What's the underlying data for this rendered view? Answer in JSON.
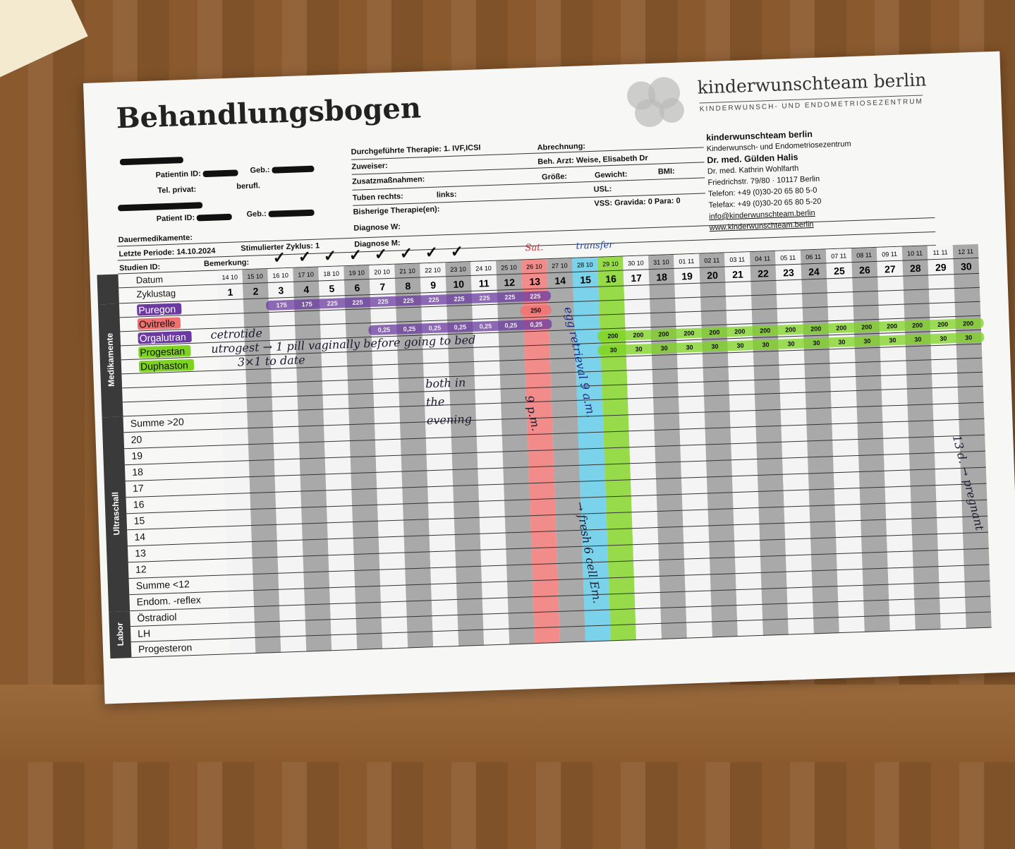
{
  "header": {
    "title": "Behandlungsbogen",
    "brand": "kinderwunschteam berlin",
    "brand_sub": "KINDERWUNSCH- UND ENDOMETRIOSEZENTRUM"
  },
  "patient": {
    "patientin_id": "Patientin ID:",
    "geb": "Geb.:",
    "tel_privat": "Tel. privat:",
    "berufl": "berufl.",
    "patient_id": "Patient ID:",
    "geb2": "Geb.:",
    "dauermedikamente": "Dauermedikamente:",
    "letzte_periode": "Letzte Periode: 14.10.2024",
    "stim_zyklus": "Stimulierter Zyklus: 1",
    "studien_id": "Studien ID:",
    "bemerkung": "Bemerkung:"
  },
  "therapy": {
    "durchgefuehrt": "Durchgeführte Therapie: 1. IVF,ICSI",
    "zuweiser": "Zuweiser:",
    "zusatz": "Zusatzmaßnahmen:",
    "tuben": "Tuben  rechts:",
    "links": "links:",
    "bisherige": "Bisherige Therapie(en):",
    "diagnose_w": "Diagnose W:",
    "diagnose_m": "Diagnose M:",
    "abrechnung": "Abrechnung:",
    "arzt": "Beh. Arzt: Weise, Elisabeth Dr",
    "groesse": "Größe:",
    "gewicht": "Gewicht:",
    "bmi": "BMI:",
    "usl": "USL:",
    "vss": "VSS:  Gravida: 0  Para: 0"
  },
  "clinic": {
    "name": "kinderwunschteam berlin",
    "sub": "Kinderwunsch- und Endometriosezentrum",
    "doc1": "Dr. med. Gülden Halis",
    "doc2": "Dr. med. Kathrin Wohlfarth",
    "address": "Friedrichstr. 79/80  ·  10117 Berlin",
    "phone": "Telefon: +49 (0)30-20 65 80 5-0",
    "fax": "Telefax: +49 (0)30-20 65 80 5-20",
    "email": "info@kinderwunschteam.berlin",
    "web": "www.kinderwunschteam.berlin"
  },
  "grid": {
    "row_date": "Datum",
    "row_day": "Zyklustag",
    "dates": [
      "14 10",
      "15 10",
      "16 10",
      "17 10",
      "18 10",
      "19 10",
      "20 10",
      "21 10",
      "22 10",
      "23 10",
      "24 10",
      "25 10",
      "26 10",
      "27 10",
      "28 10",
      "29 10",
      "30 10",
      "31 10",
      "01 11",
      "02 11",
      "03 11",
      "04 11",
      "05 11",
      "06 11",
      "07 11",
      "08 11",
      "09 11",
      "10 11",
      "11 11",
      "12 11"
    ],
    "days": [
      1,
      2,
      3,
      4,
      5,
      6,
      7,
      8,
      9,
      10,
      11,
      12,
      13,
      14,
      15,
      16,
      17,
      18,
      19,
      20,
      21,
      22,
      23,
      24,
      25,
      26,
      27,
      28,
      29,
      30
    ],
    "section_med": "Medikamente",
    "section_us": "Ultraschall",
    "section_lab": "Labor",
    "medications": [
      {
        "name": "Puregon",
        "color": "#6a3aa0",
        "values": [
          null,
          null,
          "175",
          "175",
          "225",
          "225",
          "225",
          "225",
          "225",
          "225",
          "225",
          "225",
          "225",
          null,
          null,
          null,
          null,
          null,
          null,
          null,
          null,
          null,
          null,
          null,
          null,
          null,
          null,
          null,
          null,
          null
        ]
      },
      {
        "name": "Ovitrelle",
        "color": "#f07070",
        "values": [
          null,
          null,
          null,
          null,
          null,
          null,
          null,
          null,
          null,
          null,
          null,
          null,
          "250",
          null,
          null,
          null,
          null,
          null,
          null,
          null,
          null,
          null,
          null,
          null,
          null,
          null,
          null,
          null,
          null,
          null
        ]
      },
      {
        "name": "Orgalutran",
        "color": "#6a3aa0",
        "values": [
          null,
          null,
          null,
          null,
          null,
          null,
          "0,25",
          "0,25",
          "0,25",
          "0,25",
          "0,25",
          "0,25",
          "0,25",
          null,
          null,
          null,
          null,
          null,
          null,
          null,
          null,
          null,
          null,
          null,
          null,
          null,
          null,
          null,
          null,
          null
        ]
      },
      {
        "name": "Progestan",
        "color": "#7ed321",
        "values": [
          null,
          null,
          null,
          null,
          null,
          null,
          null,
          null,
          null,
          null,
          null,
          null,
          null,
          null,
          null,
          "200",
          "200",
          "200",
          "200",
          "200",
          "200",
          "200",
          "200",
          "200",
          "200",
          "200",
          "200",
          "200",
          "200",
          "200"
        ]
      },
      {
        "name": "Duphaston",
        "color": "#7ed321",
        "values": [
          null,
          null,
          null,
          null,
          null,
          null,
          null,
          null,
          null,
          null,
          null,
          null,
          null,
          null,
          null,
          "30",
          "30",
          "30",
          "30",
          "30",
          "30",
          "30",
          "30",
          "30",
          "30",
          "30",
          "30",
          "30",
          "30",
          "30"
        ]
      },
      {
        "name": "",
        "color": "",
        "values": []
      },
      {
        "name": "",
        "color": "",
        "values": []
      },
      {
        "name": "",
        "color": "",
        "values": []
      }
    ],
    "ultrasound_rows": [
      "Summe >20",
      "20",
      "19",
      "18",
      "17",
      "16",
      "15",
      "14",
      "13",
      "12",
      "Summe <12",
      "Endom. -reflex"
    ],
    "lab_rows": [
      "Östradiol",
      "LH",
      "Progesteron"
    ],
    "checked_days": [
      3,
      4,
      5,
      6,
      7,
      8,
      9,
      10
    ],
    "column_highlights": [
      {
        "day": 13,
        "color": "#f07070"
      },
      {
        "day": 15,
        "color": "#5bc8e8"
      },
      {
        "day": 16,
        "color": "#7ed321"
      }
    ]
  },
  "handwriting": {
    "orgalutran_note": "cetrotide",
    "progestan_note": "utrogest → 1 pill vaginally before going to bed",
    "duphaston_note": "3×1 to date",
    "sat": "Sat.",
    "transfer": "transfer",
    "evening": "both in the evening",
    "pm": "9 p.m.",
    "retrieval": "egg retrieval 9 a.m.",
    "fresh": "→ fresh 6 cell Em.",
    "right": "13 d. → pregnant"
  }
}
